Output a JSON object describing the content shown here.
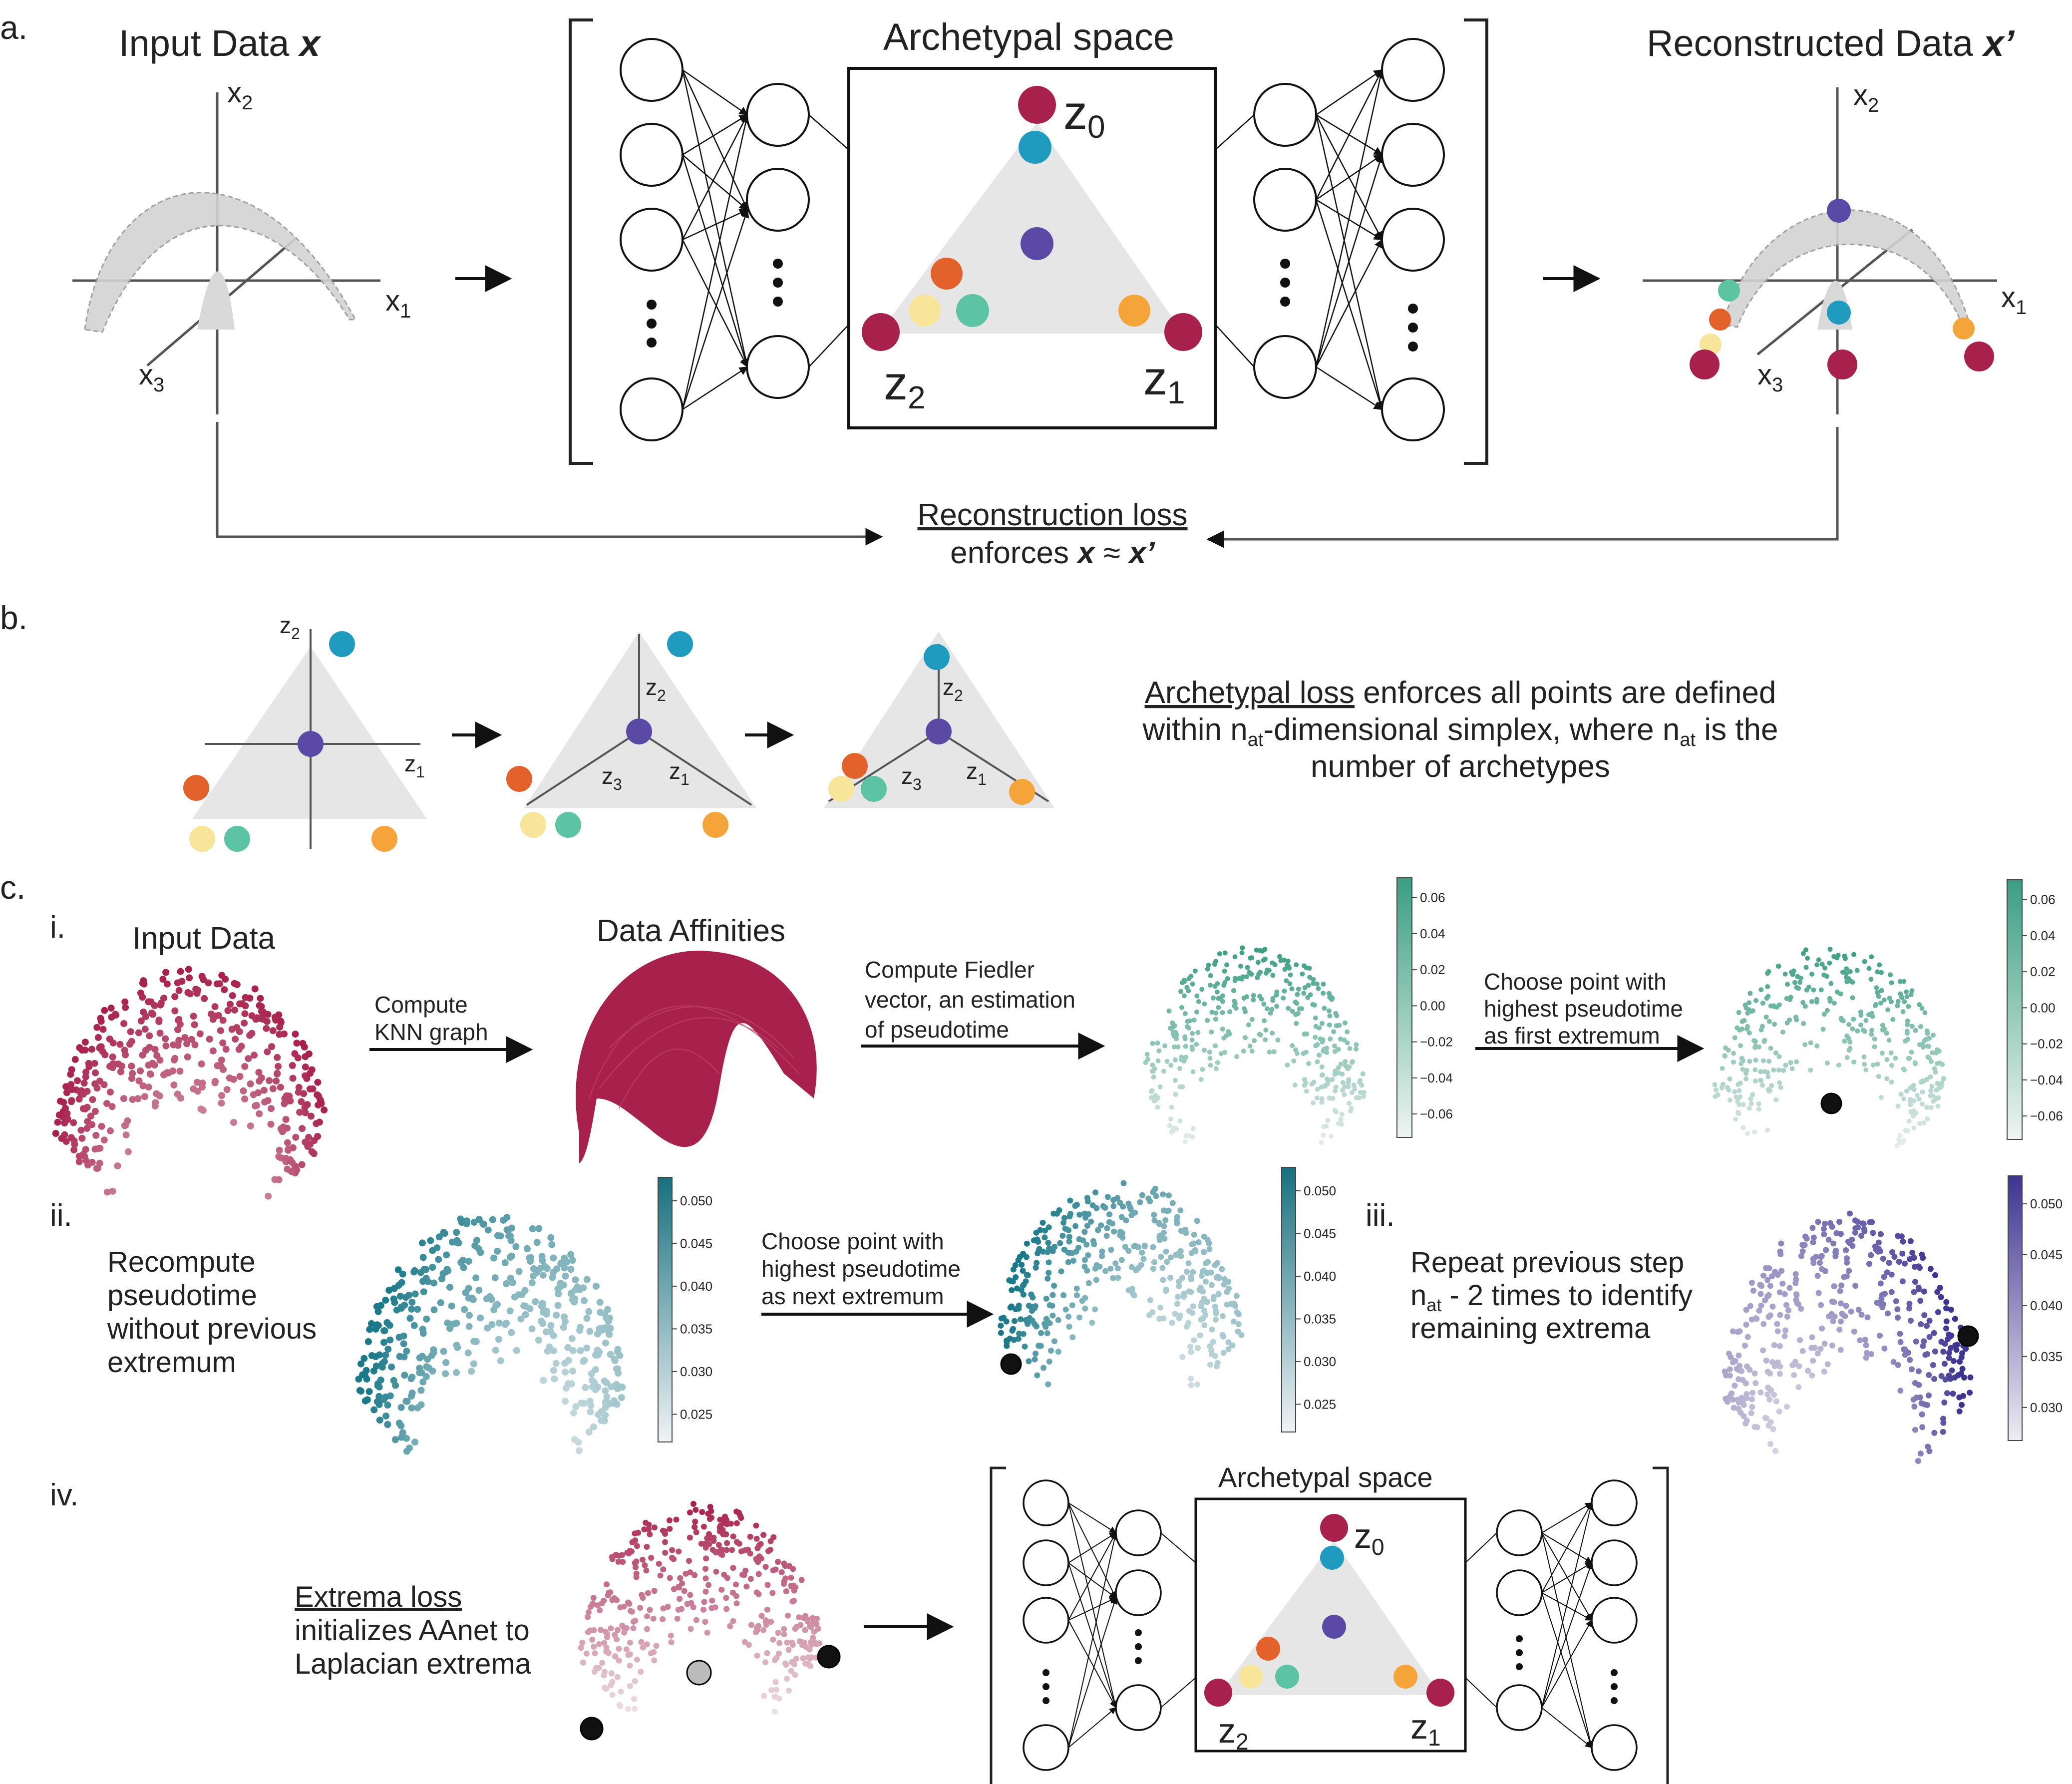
{
  "panels": {
    "a": "a.",
    "b": "b.",
    "c": "c."
  },
  "a": {
    "input_title": "Input Data ",
    "input_var": "x",
    "recon_title": "Reconstructed Data ",
    "recon_var": "x’",
    "space_title": "Archetypal space",
    "axes": {
      "x1": "x",
      "x2": "x",
      "x3": "x",
      "s1": "1",
      "s2": "2",
      "s3": "3"
    },
    "archetypes": {
      "z": "z",
      "s0": "0",
      "s1": "1",
      "s2": "2"
    },
    "loss_title": "Reconstruction loss",
    "loss_line_pre": "enforces ",
    "loss_x": "x",
    "loss_approx": " ≈ ",
    "loss_xp": "x’"
  },
  "b": {
    "labels": {
      "z": "z",
      "s1": "1",
      "s2": "2",
      "s3": "3"
    },
    "text_underlined": "Archetypal loss",
    "text_line1_rest": " enforces all points are defined",
    "text_line2_a": "within n",
    "text_sub_at": "at",
    "text_line2_b": "-dimensional simplex, where n",
    "text_line2_c": " is the",
    "text_line3": "number of archetypes"
  },
  "c": {
    "steps": {
      "i": "i.",
      "ii": "ii.",
      "iii": "iii.",
      "iv": "iv."
    },
    "input_data": "Input Data",
    "data_affinities": "Data Affinities",
    "knn": [
      "Compute",
      "KNN graph"
    ],
    "fiedler": [
      "Compute Fiedler",
      "vector, an estimation",
      "of pseudotime"
    ],
    "choose_first": [
      "Choose point with",
      "highest pseudotime",
      "as first extremum"
    ],
    "recompute": [
      "Recompute",
      "pseudotime",
      "without previous",
      "extremum"
    ],
    "choose_next": [
      "Choose point with",
      "highest pseudotime",
      "as next extremum"
    ],
    "repeat_a": "Repeat previous step",
    "repeat_b_pre": "n",
    "repeat_b_sub": "at",
    "repeat_b_post": " - 2 times to identify",
    "repeat_c": "remaining extrema",
    "extrema_loss": "Extrema loss",
    "extrema_rest": [
      "initializes AAnet to",
      "Laplacian extrema"
    ],
    "space_title": "Archetypal space",
    "colorbar_fiedler": [
      "0.06",
      "0.04",
      "0.02",
      "0.00",
      "−0.02",
      "−0.04",
      "−0.06"
    ],
    "colorbar_recompute": [
      "0.050",
      "0.045",
      "0.040",
      "0.035",
      "0.030",
      "0.025"
    ],
    "colorbar_repeat": [
      "0.050",
      "0.045",
      "0.040",
      "0.035",
      "0.030"
    ]
  },
  "colors": {
    "crimson": "#a8204c",
    "teal_blue": "#1f9bbf",
    "purple": "#5a4aa6",
    "orange": "#e3612a",
    "yellow": "#f7e69a",
    "green": "#5cc3a3",
    "amber": "#f5a43a",
    "fiedler": "#3a9e82",
    "recompute": "#1b7a8a",
    "repeat": "#3e3492",
    "simplex_gray": "#e6e6e6"
  }
}
